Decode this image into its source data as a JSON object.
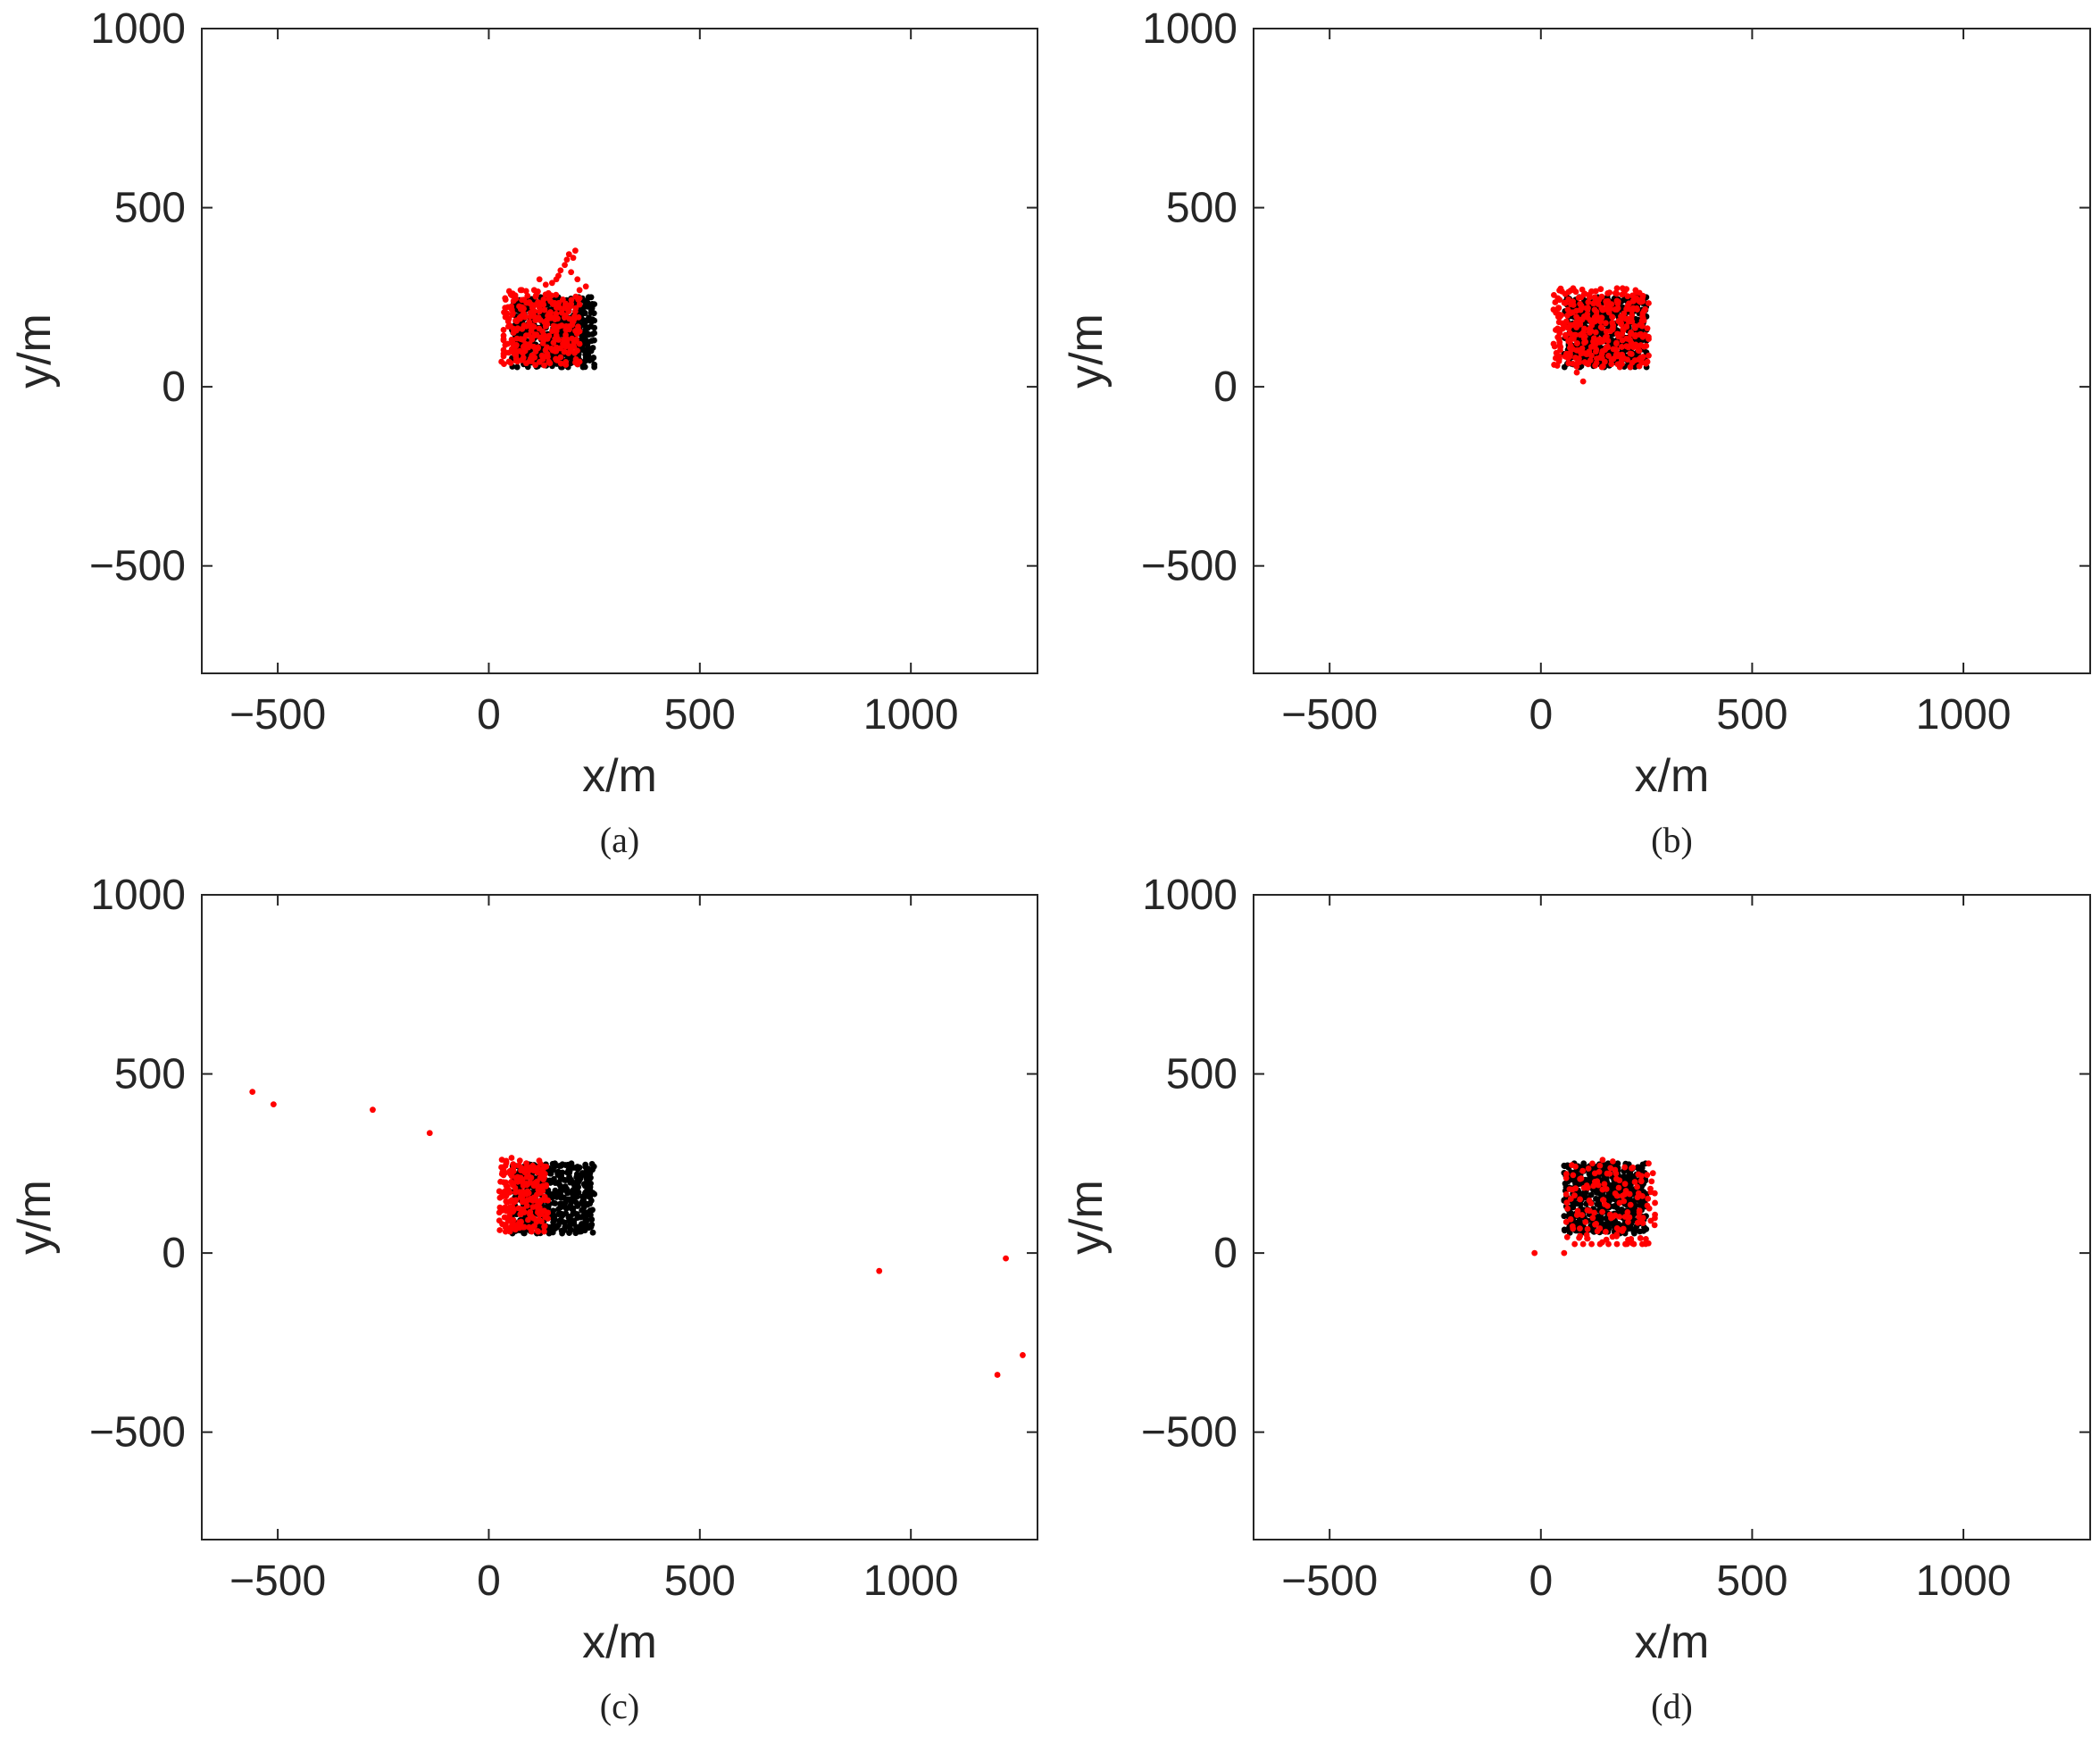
{
  "figure": {
    "panels": [
      {
        "id": "a",
        "caption": "(a)"
      },
      {
        "id": "b",
        "caption": "(b)"
      },
      {
        "id": "c",
        "caption": "(c)"
      },
      {
        "id": "d",
        "caption": "(d)"
      }
    ]
  },
  "colors": {
    "actual": "#000000",
    "estimated": "#ff0000",
    "axis": "#262626"
  },
  "chart_data": [
    {
      "panel": "a",
      "caption": "(a)",
      "type": "scatter",
      "xlabel": "x/m",
      "ylabel": "y/m",
      "xlim": [
        -680,
        1300
      ],
      "ylim": [
        -800,
        1000
      ],
      "xticks": [
        -500,
        0,
        500,
        1000
      ],
      "yticks": [
        -500,
        0,
        500,
        1000
      ],
      "xtick_labels": [
        "−500",
        "0",
        "500",
        "1000"
      ],
      "ytick_labels": [
        "−500",
        "0",
        "500",
        "1000"
      ],
      "grid": false,
      "legend": "none",
      "series": [
        {
          "color": "#000000",
          "region": {
            "x": [
              55,
              250
            ],
            "y": [
              55,
              250
            ]
          },
          "count": 420,
          "seed": 11,
          "points": []
        },
        {
          "color": "#ff0000",
          "region": {
            "x": [
              35,
              215
            ],
            "y": [
              60,
              270
            ]
          },
          "count": 280,
          "seed": 23,
          "points": [
            [
              150,
              290
            ],
            [
              165,
              310
            ],
            [
              180,
              340
            ],
            [
              190,
              370
            ],
            [
              205,
              380
            ],
            [
              200,
              360
            ],
            [
              170,
              325
            ],
            [
              135,
              285
            ],
            [
              120,
              300
            ],
            [
              185,
              355
            ],
            [
              210,
              300
            ],
            [
              195,
              320
            ],
            [
              160,
              300
            ],
            [
              30,
              70
            ],
            [
              40,
              95
            ],
            [
              45,
              120
            ],
            [
              230,
              280
            ],
            [
              215,
              270
            ]
          ]
        }
      ]
    },
    {
      "panel": "b",
      "caption": "(b)",
      "type": "scatter",
      "xlabel": "x/m",
      "ylabel": "y/m",
      "xlim": [
        -680,
        1300
      ],
      "ylim": [
        -800,
        1000
      ],
      "xticks": [
        -500,
        0,
        500,
        1000
      ],
      "yticks": [
        -500,
        0,
        500,
        1000
      ],
      "xtick_labels": [
        "−500",
        "0",
        "500",
        "1000"
      ],
      "ytick_labels": [
        "−500",
        "0",
        "500",
        "1000"
      ],
      "grid": false,
      "legend": "none",
      "series": [
        {
          "color": "#000000",
          "region": {
            "x": [
              55,
              250
            ],
            "y": [
              55,
              250
            ]
          },
          "count": 420,
          "seed": 31,
          "points": []
        },
        {
          "color": "#ff0000",
          "region": {
            "x": [
              30,
              255
            ],
            "y": [
              55,
              275
            ]
          },
          "count": 340,
          "seed": 47,
          "points": [
            [
              100,
              15
            ],
            [
              85,
              40
            ],
            [
              35,
              80
            ],
            [
              30,
              120
            ]
          ]
        }
      ]
    },
    {
      "panel": "c",
      "caption": "(c)",
      "type": "scatter",
      "xlabel": "x/m",
      "ylabel": "y/m",
      "xlim": [
        -680,
        1300
      ],
      "ylim": [
        -800,
        1000
      ],
      "xticks": [
        -500,
        0,
        500,
        1000
      ],
      "yticks": [
        -500,
        0,
        500,
        1000
      ],
      "xtick_labels": [
        "−500",
        "0",
        "500",
        "1000"
      ],
      "ytick_labels": [
        "−500",
        "0",
        "500",
        "1000"
      ],
      "grid": false,
      "legend": "none",
      "series": [
        {
          "color": "#000000",
          "region": {
            "x": [
              55,
              250
            ],
            "y": [
              55,
              250
            ]
          },
          "count": 420,
          "seed": 53,
          "points": []
        },
        {
          "color": "#ff0000",
          "region": {
            "x": [
              25,
              140
            ],
            "y": [
              60,
              270
            ]
          },
          "count": 200,
          "seed": 67,
          "points": [
            [
              -560,
              450
            ],
            [
              -510,
              415
            ],
            [
              -275,
              400
            ],
            [
              -140,
              335
            ],
            [
              925,
              -50
            ],
            [
              1225,
              -15
            ],
            [
              1265,
              -285
            ],
            [
              1205,
              -340
            ]
          ]
        }
      ]
    },
    {
      "panel": "d",
      "caption": "(d)",
      "type": "scatter",
      "xlabel": "x/m",
      "ylabel": "y/m",
      "xlim": [
        -680,
        1300
      ],
      "ylim": [
        -800,
        1000
      ],
      "xticks": [
        -500,
        0,
        500,
        1000
      ],
      "yticks": [
        -500,
        0,
        500,
        1000
      ],
      "xtick_labels": [
        "−500",
        "0",
        "500",
        "1000"
      ],
      "ytick_labels": [
        "−500",
        "0",
        "500",
        "1000"
      ],
      "grid": false,
      "legend": "none",
      "series": [
        {
          "color": "#000000",
          "region": {
            "x": [
              55,
              250
            ],
            "y": [
              55,
              250
            ]
          },
          "count": 420,
          "seed": 71,
          "points": []
        },
        {
          "color": "#ff0000",
          "region": {
            "x": [
              60,
              270
            ],
            "y": [
              25,
              260
            ]
          },
          "count": 140,
          "seed": 83,
          "points": [
            [
              -15,
              0
            ],
            [
              55,
              0
            ],
            [
              80,
              25
            ],
            [
              100,
              25
            ],
            [
              120,
              25
            ],
            [
              140,
              25
            ],
            [
              160,
              25
            ],
            [
              180,
              25
            ],
            [
              200,
              25
            ],
            [
              220,
              25
            ],
            [
              240,
              25
            ],
            [
              260,
              90
            ],
            [
              270,
              140
            ],
            [
              262,
              200
            ],
            [
              255,
              250
            ]
          ]
        }
      ]
    }
  ]
}
